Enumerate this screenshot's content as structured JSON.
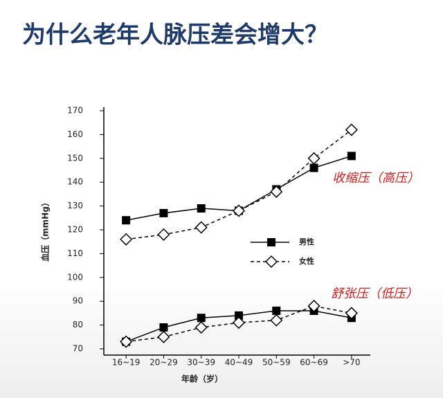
{
  "title": "为什么老年人脉压差会增大？",
  "chart_data": {
    "type": "line",
    "x_label": "年龄（岁）",
    "y_label": "血压（mmHg）",
    "categories": [
      "16~19",
      "20~29",
      "30~39",
      "40~49",
      "50~59",
      "60~69",
      ">70"
    ],
    "ylim": [
      70,
      170
    ],
    "yticks": [
      70,
      80,
      90,
      100,
      110,
      120,
      130,
      140,
      150,
      160,
      170
    ],
    "grid": false,
    "series": [
      {
        "name": "男性",
        "color": "#000000",
        "dashed": false,
        "marker": "square",
        "systolic": [
          124,
          127,
          129,
          128,
          137,
          146,
          151
        ],
        "diastolic": [
          73,
          79,
          83,
          84,
          86,
          86,
          83
        ]
      },
      {
        "name": "女性",
        "color": "#000000",
        "dashed": true,
        "marker": "diamond",
        "systolic": [
          116,
          118,
          121,
          128,
          136,
          150,
          162
        ],
        "diastolic": [
          73,
          75,
          79,
          81,
          82,
          88,
          85
        ]
      }
    ],
    "annotations": [
      "收缩压（高压）",
      "舒张压（低压）"
    ],
    "annotation_color": "#d01c1c"
  }
}
